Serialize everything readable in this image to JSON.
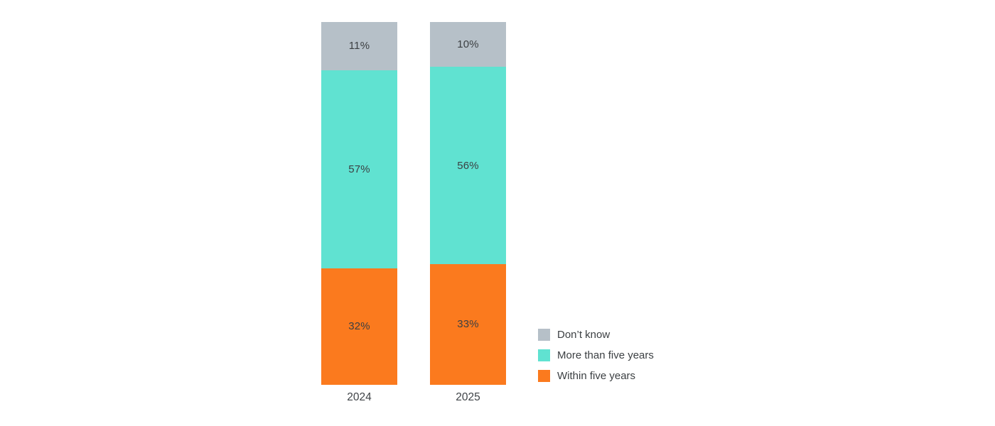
{
  "page": {
    "background": "#ffffff",
    "text_color": "#3c4043"
  },
  "chart_data": {
    "type": "bar",
    "variant": "100-percent-stacked-column",
    "title": "",
    "categories": [
      "2024",
      "2025"
    ],
    "series": [
      {
        "name": "Within five years",
        "color": "#fb7a1e",
        "values": [
          32,
          33
        ],
        "labels": [
          "32%",
          "33%"
        ]
      },
      {
        "name": "More than five years",
        "color": "#60e2d1",
        "values": [
          57,
          56
        ],
        "labels": [
          "57%",
          "56%"
        ]
      },
      {
        "name": "Don’t know",
        "color": "#b6c0c8",
        "values": [
          11,
          10
        ],
        "labels": [
          "11%",
          "10%"
        ]
      }
    ],
    "stack_order_bottom_to_top": [
      "Within five years",
      "More than five years",
      "Don’t know"
    ],
    "ylim": [
      0,
      100
    ],
    "grid": false,
    "axes_visible": false,
    "value_labels": "inside-center",
    "legend": {
      "position": "right-bottom",
      "items": [
        {
          "label": "Don’t know",
          "color": "#b6c0c8"
        },
        {
          "label": "More than five years",
          "color": "#60e2d1"
        },
        {
          "label": "Within five years",
          "color": "#fb7a1e"
        }
      ]
    }
  }
}
